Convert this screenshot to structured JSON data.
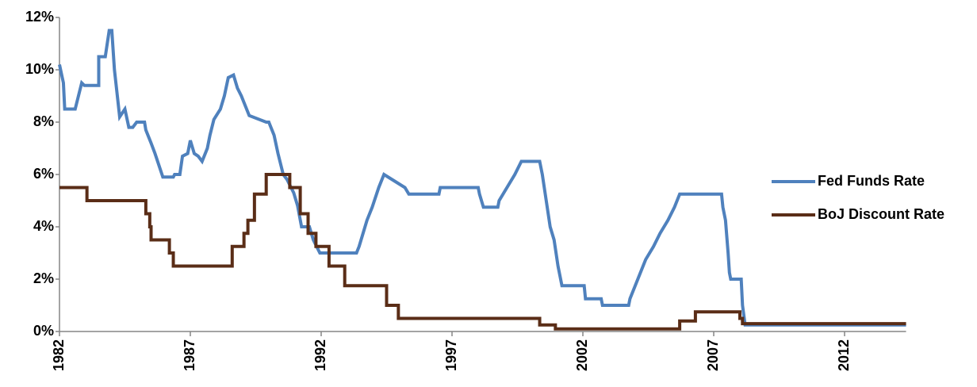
{
  "chart_data": {
    "type": "line",
    "step_lines": true,
    "xlim": [
      1982,
      2014.35
    ],
    "xticks": [
      1982,
      1987,
      1992,
      1997,
      2002,
      2007,
      2012
    ],
    "ylim": [
      0,
      12
    ],
    "yticks": [
      {
        "value": 0,
        "label": "0%"
      },
      {
        "value": 2,
        "label": "2%"
      },
      {
        "value": 4,
        "label": "4%"
      },
      {
        "value": 6,
        "label": "6%"
      },
      {
        "value": 8,
        "label": "8%"
      },
      {
        "value": 10,
        "label": "10%"
      },
      {
        "value": 12,
        "label": "12%"
      }
    ],
    "grid": false,
    "legend": "right",
    "series": [
      {
        "name": "Fed Funds Rate",
        "color": "#4f81bd",
        "x": [
          1982.0,
          1982.15,
          1982.2,
          1982.6,
          1982.85,
          1982.95,
          1983.5,
          1983.5,
          1983.75,
          1983.9,
          1984.0,
          1984.1,
          1984.3,
          1984.5,
          1984.65,
          1984.8,
          1984.95,
          1985.25,
          1985.3,
          1985.5,
          1985.65,
          1985.95,
          1986.35,
          1986.4,
          1986.6,
          1986.7,
          1986.9,
          1987.0,
          1987.15,
          1987.3,
          1987.45,
          1987.65,
          1987.75,
          1987.9,
          1988.15,
          1988.3,
          1988.45,
          1988.65,
          1988.8,
          1988.95,
          1989.25,
          1989.9,
          1990.0,
          1990.2,
          1990.35,
          1990.55,
          1990.7,
          1990.95,
          1991.1,
          1991.25,
          1991.55,
          1991.7,
          1991.95,
          1993.35,
          1993.45,
          1993.6,
          1993.75,
          1993.95,
          1994.2,
          1994.4,
          1994.8,
          1995.2,
          1995.35,
          1996.5,
          1996.55,
          1998.0,
          1998.05,
          1998.2,
          1998.75,
          1998.8,
          1998.95,
          1999.1,
          1999.4,
          1999.65,
          2000.35,
          2000.45,
          2000.6,
          2000.75,
          2000.9,
          2001.05,
          2001.2,
          2002.05,
          2002.1,
          2002.7,
          2002.75,
          2003.75,
          2003.8,
          2004.0,
          2004.2,
          2004.4,
          2004.7,
          2004.95,
          2005.25,
          2005.5,
          2005.7,
          2007.3,
          2007.35,
          2007.45,
          2007.55,
          2007.6,
          2007.65,
          2008.05,
          2008.1,
          2008.2,
          2014.35
        ],
        "values": [
          10.2,
          9.5,
          8.5,
          8.5,
          9.5,
          9.4,
          9.4,
          10.5,
          10.5,
          11.5,
          11.5,
          10.0,
          8.2,
          8.5,
          7.8,
          7.8,
          8.0,
          8.0,
          7.7,
          7.2,
          6.8,
          5.9,
          5.9,
          6.0,
          6.0,
          6.7,
          6.8,
          7.3,
          6.8,
          6.7,
          6.5,
          7.0,
          7.5,
          8.1,
          8.5,
          9.0,
          9.7,
          9.8,
          9.3,
          9.0,
          8.25,
          8.0,
          8.0,
          7.5,
          6.8,
          6.0,
          5.8,
          5.3,
          4.8,
          4.0,
          4.0,
          3.5,
          3.0,
          3.0,
          3.25,
          3.75,
          4.25,
          4.75,
          5.5,
          6.0,
          5.75,
          5.5,
          5.25,
          5.25,
          5.5,
          5.5,
          5.25,
          4.75,
          4.75,
          5.0,
          5.25,
          5.5,
          6.0,
          6.5,
          6.5,
          6.0,
          5.0,
          4.0,
          3.5,
          2.5,
          1.75,
          1.75,
          1.25,
          1.25,
          1.0,
          1.0,
          1.25,
          1.75,
          2.25,
          2.75,
          3.25,
          3.75,
          4.25,
          4.75,
          5.25,
          5.25,
          4.75,
          4.25,
          3.0,
          2.25,
          2.0,
          2.0,
          1.0,
          0.25,
          0.25
        ]
      },
      {
        "name": "BoJ Discount Rate",
        "color": "#5a2d17",
        "x": [
          1982.0,
          1983.05,
          1983.05,
          1985.3,
          1985.3,
          1985.45,
          1985.45,
          1985.5,
          1985.5,
          1986.2,
          1986.2,
          1986.35,
          1986.35,
          1988.6,
          1988.6,
          1989.05,
          1989.05,
          1989.2,
          1989.2,
          1989.45,
          1989.45,
          1989.9,
          1989.9,
          1990.8,
          1990.8,
          1991.2,
          1991.2,
          1991.5,
          1991.5,
          1991.8,
          1991.8,
          1992.3,
          1992.3,
          1992.9,
          1992.9,
          1994.5,
          1994.5,
          1994.95,
          1994.95,
          2000.35,
          2000.35,
          2000.95,
          2000.95,
          2005.7,
          2005.7,
          2006.3,
          2006.3,
          2008.0,
          2008.0,
          2008.1,
          2008.1,
          2014.35
        ],
        "values": [
          5.5,
          5.5,
          5.0,
          5.0,
          4.5,
          4.5,
          4.0,
          4.0,
          3.5,
          3.5,
          3.0,
          3.0,
          2.5,
          2.5,
          3.25,
          3.25,
          3.75,
          3.75,
          4.25,
          4.25,
          5.25,
          5.25,
          6.0,
          6.0,
          5.5,
          5.5,
          4.5,
          4.5,
          3.75,
          3.75,
          3.25,
          3.25,
          2.5,
          2.5,
          1.75,
          1.75,
          1.0,
          1.0,
          0.5,
          0.5,
          0.25,
          0.25,
          0.1,
          0.1,
          0.4,
          0.4,
          0.75,
          0.75,
          0.5,
          0.5,
          0.3,
          0.3
        ]
      }
    ]
  }
}
